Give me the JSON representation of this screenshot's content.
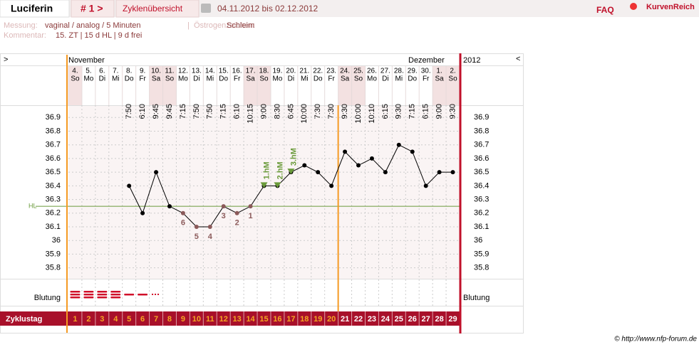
{
  "header": {
    "title": "Luciferin",
    "cycle_nav": "# 1 >",
    "overview": "Zyklenübersicht",
    "range": "04.11.2012 bis 02.12.2012",
    "faq": "FAQ",
    "brand": "KurvenReich"
  },
  "info": {
    "measure_label": "Messung:",
    "measure": "vaginal / analog / 5 Minuten",
    "separator": "|",
    "estrogen_label": "Östrogenzeichen:",
    "estrogen": "Schleim",
    "comment_label": "Kommentar:",
    "comment": "15. ZT | 15 d HL | 9 d frei"
  },
  "chart_data": {
    "type": "line",
    "nav_prev": ">",
    "nav_next": "<",
    "months": [
      "November",
      "Dezember"
    ],
    "year": "2012",
    "categories": [
      "4.",
      "5.",
      "6.",
      "7.",
      "8.",
      "9.",
      "10.",
      "11.",
      "12.",
      "13.",
      "14.",
      "15.",
      "16.",
      "17.",
      "18.",
      "19.",
      "20.",
      "21.",
      "22.",
      "23.",
      "24.",
      "25.",
      "26.",
      "27.",
      "28.",
      "29.",
      "30.",
      "1.",
      "2."
    ],
    "weekdays": [
      "So",
      "Mo",
      "Di",
      "Mi",
      "Do",
      "Fr",
      "Sa",
      "So",
      "Mo",
      "Di",
      "Mi",
      "Do",
      "Fr",
      "Sa",
      "So",
      "Mo",
      "Di",
      "Mi",
      "Do",
      "Fr",
      "Sa",
      "So",
      "Mo",
      "Di",
      "Mi",
      "Do",
      "Fr",
      "Sa",
      "So"
    ],
    "times": [
      null,
      null,
      null,
      null,
      "7:50",
      "6:10",
      "9:45",
      "9:45",
      "7:15",
      "7:50",
      "7:50",
      "7:15",
      "6:10",
      "10:15",
      "9:00",
      "8:30",
      "6:45",
      "10:00",
      "7:30",
      "7:30",
      "9:30",
      "10:00",
      "10:10",
      "6:15",
      "9:30",
      "7:15",
      "6:15",
      "9:00",
      "9:30"
    ],
    "values": [
      null,
      null,
      null,
      null,
      36.4,
      36.2,
      36.5,
      36.25,
      36.2,
      36.1,
      36.1,
      36.25,
      36.2,
      36.25,
      36.4,
      36.4,
      36.5,
      36.55,
      36.5,
      36.4,
      36.65,
      36.55,
      36.6,
      36.5,
      36.7,
      36.65,
      36.4,
      36.5,
      36.5
    ],
    "color": "#000000",
    "low_labels": [
      null,
      null,
      null,
      null,
      null,
      null,
      null,
      null,
      6,
      5,
      4,
      3,
      2,
      1,
      null,
      null,
      null,
      null,
      null,
      null,
      null,
      null,
      null,
      null,
      null,
      null,
      null,
      null,
      null
    ],
    "high_labels": [
      null,
      null,
      null,
      null,
      null,
      null,
      null,
      null,
      null,
      null,
      null,
      null,
      null,
      null,
      "1.hM",
      "2.hM",
      "3.hM",
      null,
      null,
      null,
      null,
      null,
      null,
      null,
      null,
      null,
      null,
      null,
      null
    ],
    "coverline": {
      "label": "HL",
      "value": 36.25,
      "color": "#6a9a3a"
    },
    "ylim": [
      35.72,
      36.99
    ],
    "yticks": [
      35.8,
      35.9,
      36,
      36.1,
      36.2,
      36.3,
      36.4,
      36.5,
      36.6,
      36.7,
      36.8,
      36.9
    ],
    "grid": true,
    "bleeding_label": "Blutung",
    "bleeding": [
      3,
      3,
      3,
      3,
      1,
      1,
      0.5,
      null,
      null,
      null,
      null,
      null,
      null,
      null,
      null,
      null,
      null,
      null,
      null,
      null,
      null,
      null,
      null,
      null,
      null,
      null,
      null,
      null,
      null
    ],
    "cycle_day_label": "Zyklustag",
    "cycle_days": [
      1,
      2,
      3,
      4,
      5,
      6,
      7,
      8,
      9,
      10,
      11,
      12,
      13,
      14,
      15,
      16,
      17,
      18,
      19,
      20,
      21,
      22,
      23,
      24,
      25,
      26,
      27,
      28,
      29
    ],
    "cycle_day_colors": [
      "#f5a623",
      "#f5a623",
      "#f5a623",
      "#f5a623",
      "#f5a623",
      "#f5a623",
      "#f5a623",
      "#f5a623",
      "#f5a623",
      "#f5a623",
      "#f5a623",
      "#f5a623",
      "#f5a623",
      "#f5a623",
      "#f5a623",
      "#f5a623",
      "#f5a623",
      "#f5a623",
      "#f5a623",
      "#f5a623",
      "#ffffff",
      "#ffffff",
      "#ffffff",
      "#ffffff",
      "#ffffff",
      "#ffffff",
      "#ffffff",
      "#ffffff",
      "#ffffff"
    ]
  },
  "footer": "© http://www.nfp-forum.de"
}
